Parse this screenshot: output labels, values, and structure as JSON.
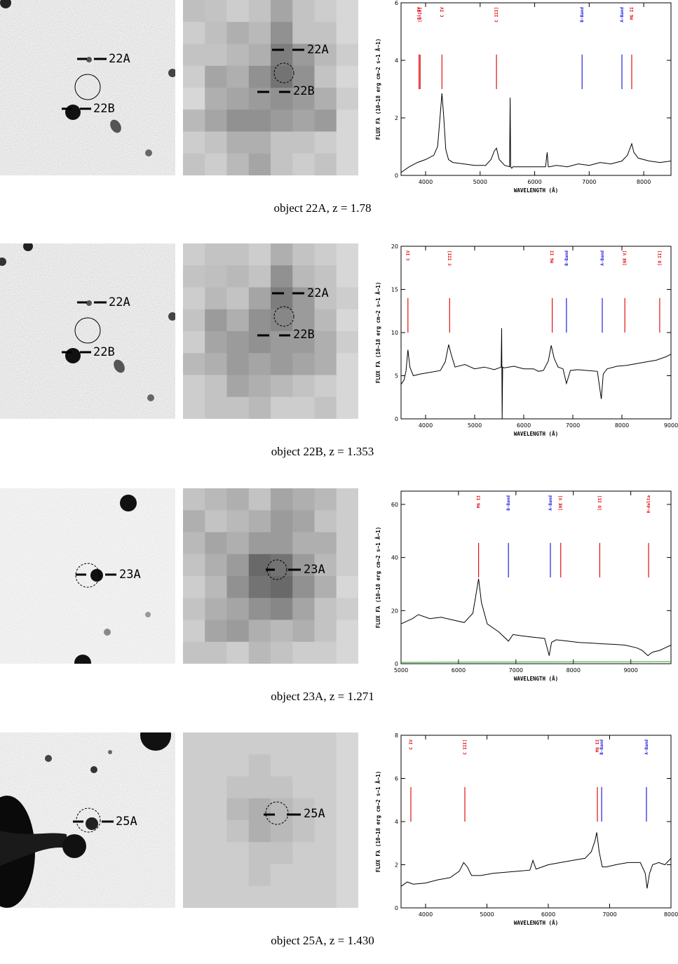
{
  "ylabel_text": "FLUX F",
  "ylabel_sub": "λ",
  "ylabel_units": "(10",
  "ylabel_exp": "−18",
  "ylabel_rest": " erg cm",
  "ylabel_exp2": "−2",
  "ylabel_rest2": " s",
  "ylabel_exp3": "−1",
  "ylabel_rest3": " Å",
  "ylabel_exp4": "−1",
  "ylabel_end": ")",
  "panels": [
    {
      "caption": "object 22A, z = 1.78",
      "optical_labels": [
        "22A",
        "22B"
      ],
      "xray_labels": [
        "22A",
        "22B"
      ],
      "chart_data": {
        "type": "line",
        "xlabel": "WAVELENGTH (Å)",
        "ylabel": "FLUX Fλ (10−18 erg cm−2 s−1 Å−1)",
        "xlim": [
          3550,
          8500
        ],
        "ylim": [
          0,
          6
        ],
        "xticks": [
          4000,
          5000,
          6000,
          7000,
          8000
        ],
        "yticks": [
          0,
          2,
          4,
          6
        ],
        "lines": [
          {
            "label": "Si IV",
            "x": 3880,
            "color": "#e01010"
          },
          {
            "label": "[O IV]",
            "x": 3900,
            "color": "#e01010"
          },
          {
            "label": "C IV",
            "x": 4300,
            "color": "#e01010"
          },
          {
            "label": "C III]",
            "x": 5300,
            "color": "#e01010"
          },
          {
            "label": "B-Band",
            "x": 6870,
            "color": "#2020e0"
          },
          {
            "label": "A-Band",
            "x": 7600,
            "color": "#2020e0"
          },
          {
            "label": "MG II",
            "x": 7780,
            "color": "#e01010"
          }
        ],
        "series": [
          {
            "x": [
              3550,
              3700,
              3850,
              4000,
              4150,
              4220,
              4260,
              4300,
              4330,
              4370,
              4420,
              4500,
              4700,
              4900,
              5100,
              5200,
              5260,
              5300,
              5350,
              5450,
              5540,
              5550,
              5560,
              5580,
              5600,
              5800,
              6000,
              6200,
              6230,
              6250,
              6270,
              6400,
              6600,
              6800,
              7000,
              7200,
              7400,
              7600,
              7700,
              7780,
              7820,
              7900,
              8100,
              8300,
              8500
            ],
            "y": [
              0.1,
              0.3,
              0.45,
              0.55,
              0.7,
              1.0,
              1.9,
              2.85,
              2.1,
              0.9,
              0.55,
              0.45,
              0.4,
              0.35,
              0.35,
              0.55,
              0.85,
              0.95,
              0.55,
              0.35,
              0.3,
              2.7,
              0.3,
              0.25,
              0.3,
              0.3,
              0.3,
              0.3,
              0.8,
              0.3,
              0.3,
              0.35,
              0.3,
              0.4,
              0.35,
              0.45,
              0.4,
              0.5,
              0.7,
              1.1,
              0.8,
              0.6,
              0.5,
              0.45,
              0.5
            ]
          }
        ]
      }
    },
    {
      "caption": "object 22B, z = 1.353",
      "optical_labels": [
        "22A",
        "22B"
      ],
      "xray_labels": [
        "22A",
        "22B"
      ],
      "chart_data": {
        "type": "line",
        "xlabel": "WAVELENGTH (Å)",
        "ylabel": "FLUX Fλ (10−18 erg cm−2 s−1 Å−1)",
        "xlim": [
          3500,
          9000
        ],
        "ylim": [
          0,
          20
        ],
        "xticks": [
          4000,
          5000,
          6000,
          7000,
          8000,
          9000
        ],
        "yticks": [
          0,
          5,
          10,
          15,
          20
        ],
        "lines": [
          {
            "label": "C IV",
            "x": 3640,
            "color": "#e01010"
          },
          {
            "label": "C III]",
            "x": 4490,
            "color": "#e01010"
          },
          {
            "label": "MG II",
            "x": 6580,
            "color": "#e01010"
          },
          {
            "label": "B-Band",
            "x": 6870,
            "color": "#2020e0"
          },
          {
            "label": "A-Band",
            "x": 7600,
            "color": "#2020e0"
          },
          {
            "label": "[NE V]",
            "x": 8060,
            "color": "#e01010"
          },
          {
            "label": "[O II]",
            "x": 8770,
            "color": "#e01010"
          }
        ],
        "series": [
          {
            "x": [
              3500,
              3560,
              3600,
              3640,
              3680,
              3750,
              3900,
              4100,
              4300,
              4400,
              4470,
              4520,
              4600,
              4800,
              5000,
              5200,
              5400,
              5540,
              5550,
              5560,
              5570,
              5600,
              5800,
              6000,
              6200,
              6300,
              6400,
              6500,
              6560,
              6620,
              6700,
              6800,
              6870,
              6950,
              7100,
              7300,
              7500,
              7580,
              7620,
              7700,
              7900,
              8100,
              8300,
              8500,
              8700,
              8900,
              9000
            ],
            "y": [
              4.0,
              4.5,
              5.5,
              8.0,
              6.0,
              5.0,
              5.2,
              5.4,
              5.6,
              6.6,
              8.6,
              7.5,
              6.0,
              6.3,
              5.8,
              6.0,
              5.7,
              6.0,
              10.5,
              0.0,
              6.0,
              5.9,
              6.1,
              5.8,
              5.8,
              5.5,
              5.6,
              6.7,
              8.5,
              7.0,
              6.0,
              5.8,
              4.1,
              5.6,
              5.7,
              5.6,
              5.5,
              2.3,
              5.2,
              5.8,
              6.1,
              6.2,
              6.4,
              6.6,
              6.8,
              7.2,
              7.5
            ]
          }
        ]
      }
    },
    {
      "caption": "object 23A, z = 1.271",
      "optical_labels": [
        "23A"
      ],
      "xray_labels": [
        "23A"
      ],
      "chart_data": {
        "type": "line",
        "xlabel": "WAVELENGTH (Å)",
        "ylabel": "FLUX Fλ (10−18 erg cm−2 s−1 Å−1)",
        "xlim": [
          5000,
          9700
        ],
        "ylim": [
          0,
          65
        ],
        "xticks": [
          5000,
          6000,
          7000,
          8000,
          9000
        ],
        "yticks": [
          0,
          20,
          40,
          60
        ],
        "lines": [
          {
            "label": "MG II",
            "x": 6350,
            "color": "#e01010"
          },
          {
            "label": "B-Band",
            "x": 6870,
            "color": "#2020e0"
          },
          {
            "label": "A-Band",
            "x": 7600,
            "color": "#2020e0"
          },
          {
            "label": "[NE V]",
            "x": 7780,
            "color": "#e01010"
          },
          {
            "label": "[O II]",
            "x": 8460,
            "color": "#e01010"
          },
          {
            "label": "H-delta",
            "x": 9310,
            "color": "#e01010"
          }
        ],
        "series": [
          {
            "x": [
              5000,
              5100,
              5200,
              5300,
              5500,
              5700,
              5900,
              6100,
              6250,
              6320,
              6350,
              6400,
              6500,
              6700,
              6870,
              6950,
              7100,
              7300,
              7500,
              7580,
              7620,
              7700,
              7900,
              8100,
              8300,
              8500,
              8700,
              8900,
              9100,
              9200,
              9300,
              9350,
              9400,
              9500,
              9600,
              9700
            ],
            "y": [
              15,
              16,
              17,
              18.5,
              17,
              17.5,
              16.5,
              15.5,
              19,
              28,
              32,
              23,
              15,
              12,
              8.5,
              11,
              10.5,
              10,
              9.5,
              3,
              8,
              9,
              8.5,
              8,
              7.8,
              7.5,
              7.3,
              7,
              6,
              5,
              3,
              4,
              4.5,
              5,
              6,
              7
            ]
          },
          {
            "x": [
              5000,
              9700
            ],
            "y": [
              0.5,
              0.8
            ],
            "color": "#22aa22"
          }
        ]
      }
    },
    {
      "caption": "object 25A, z = 1.430",
      "optical_labels": [
        "25A"
      ],
      "xray_labels": [
        "25A"
      ],
      "chart_data": {
        "type": "line",
        "xlabel": "WAVELENGTH (Å)",
        "ylabel": "FLUX Fλ (10−18 erg cm−2 s−1 Å−1)",
        "xlim": [
          3600,
          8000
        ],
        "ylim": [
          0,
          8
        ],
        "xticks": [
          4000,
          5000,
          6000,
          7000,
          8000
        ],
        "yticks": [
          0,
          2,
          4,
          6,
          8
        ],
        "lines": [
          {
            "label": "C IV",
            "x": 3760,
            "color": "#e01010"
          },
          {
            "label": "C III]",
            "x": 4640,
            "color": "#e01010"
          },
          {
            "label": "MG II",
            "x": 6800,
            "color": "#e01010"
          },
          {
            "label": "B-Band",
            "x": 6870,
            "color": "#2020e0"
          },
          {
            "label": "A-Band",
            "x": 7600,
            "color": "#2020e0"
          }
        ],
        "series": [
          {
            "x": [
              3600,
              3700,
              3800,
              4000,
              4200,
              4400,
              4550,
              4620,
              4680,
              4750,
              4900,
              5100,
              5300,
              5500,
              5700,
              5750,
              5800,
              5900,
              6000,
              6200,
              6400,
              6600,
              6700,
              6760,
              6790,
              6830,
              6880,
              6950,
              7100,
              7300,
              7500,
              7580,
              7610,
              7650,
              7700,
              7800,
              7900,
              8000
            ],
            "y": [
              1.0,
              1.2,
              1.1,
              1.15,
              1.3,
              1.4,
              1.7,
              2.1,
              1.9,
              1.5,
              1.5,
              1.6,
              1.65,
              1.7,
              1.75,
              2.2,
              1.8,
              1.9,
              2.0,
              2.1,
              2.2,
              2.3,
              2.6,
              3.1,
              3.5,
              2.6,
              1.9,
              1.9,
              2.0,
              2.1,
              2.1,
              1.6,
              0.9,
              1.6,
              2.0,
              2.1,
              2.0,
              2.3
            ]
          }
        ]
      }
    }
  ]
}
